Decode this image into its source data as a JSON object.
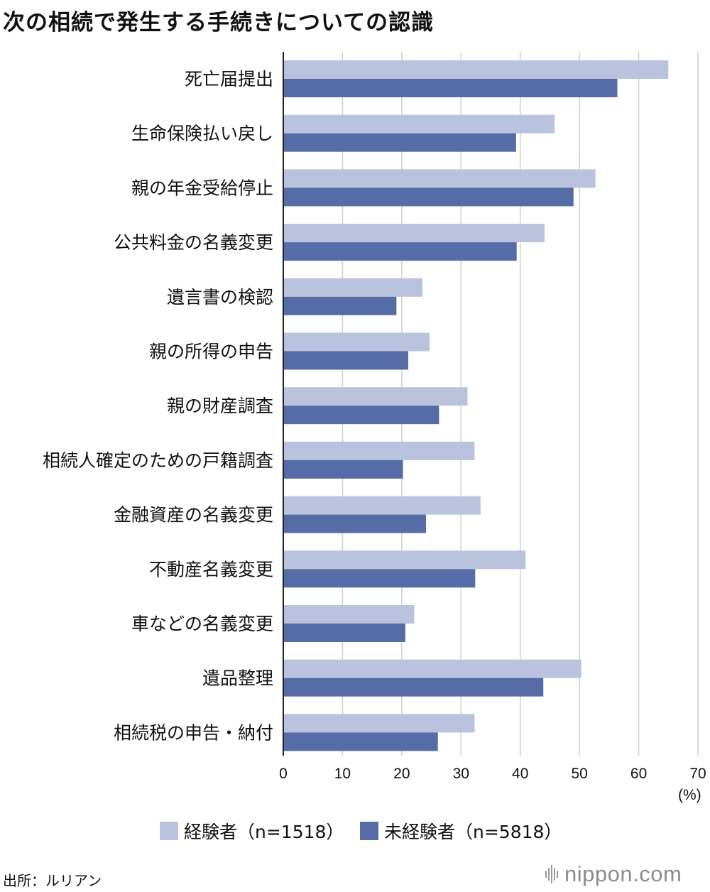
{
  "chart_data": {
    "type": "bar",
    "orientation": "horizontal",
    "title": "次の相続で発生する手続きについての認識",
    "categories": [
      "死亡届提出",
      "生命保険払い戻し",
      "親の年金受給停止",
      "公共料金の名義変更",
      "遺言書の検認",
      "親の所得の申告",
      "親の財産調査",
      "相続人確定のための戸籍調査",
      "金融資産の名義変更",
      "不動産名義変更",
      "車などの名義変更",
      "遺品整理",
      "相続税の申告・納付"
    ],
    "series": [
      {
        "name": "経験者（n=1518）",
        "color": "#bac3dd",
        "values": [
          65,
          45.8,
          52.7,
          44.1,
          23.5,
          24.7,
          31.1,
          32.3,
          33.3,
          40.9,
          22.1,
          50.3,
          32.3
        ]
      },
      {
        "name": "未経験者（n=5818）",
        "color": "#566ca6",
        "values": [
          56.4,
          39.3,
          49,
          39.4,
          19.1,
          21.1,
          26.3,
          20.2,
          24.1,
          32.4,
          20.6,
          43.9,
          26.1
        ]
      }
    ],
    "xlim": [
      0,
      70
    ],
    "xticks": [
      "0",
      "10",
      "20",
      "30",
      "40",
      "50",
      "60",
      "70"
    ],
    "unit": "(%)",
    "grid": true,
    "legend_position": "bottom"
  },
  "source": "出所：ルリアン",
  "brand": "nippon.com",
  "brand_icon": "sound-bars-icon"
}
